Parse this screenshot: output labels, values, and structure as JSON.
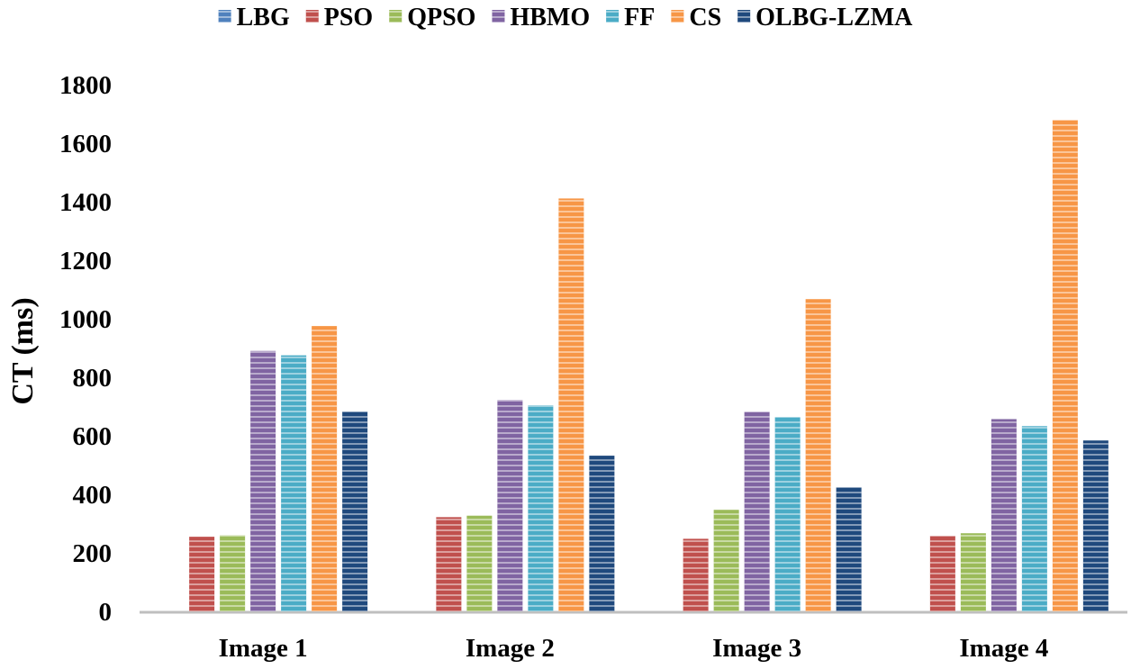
{
  "chart_data": {
    "type": "bar",
    "ylabel": "CT (ms)",
    "xlabel": "",
    "ylim": [
      0,
      1800
    ],
    "yticks": [
      0,
      200,
      400,
      600,
      800,
      1000,
      1200,
      1400,
      1600,
      1800
    ],
    "grid": false,
    "legend_position": "top",
    "categories": [
      "Image 1",
      "Image 2",
      "Image 3",
      "Image 4"
    ],
    "series": [
      {
        "name": "LBG",
        "color": "#4F81BD",
        "values": [
          0,
          0,
          0,
          0
        ]
      },
      {
        "name": "PSO",
        "color": "#C0504D",
        "values": [
          255,
          322,
          248,
          258
        ]
      },
      {
        "name": "QPSO",
        "color": "#9BBB59",
        "values": [
          260,
          327,
          347,
          267
        ]
      },
      {
        "name": "HBMO",
        "color": "#8064A2",
        "values": [
          890,
          722,
          682,
          657
        ]
      },
      {
        "name": "FF",
        "color": "#4BACC6",
        "values": [
          875,
          704,
          664,
          633
        ]
      },
      {
        "name": "CS",
        "color": "#F79646",
        "values": [
          975,
          1411,
          1067,
          1679
        ]
      },
      {
        "name": "OLBG-LZMA",
        "color": "#1F497D",
        "values": [
          683,
          532,
          424,
          584
        ]
      }
    ]
  }
}
